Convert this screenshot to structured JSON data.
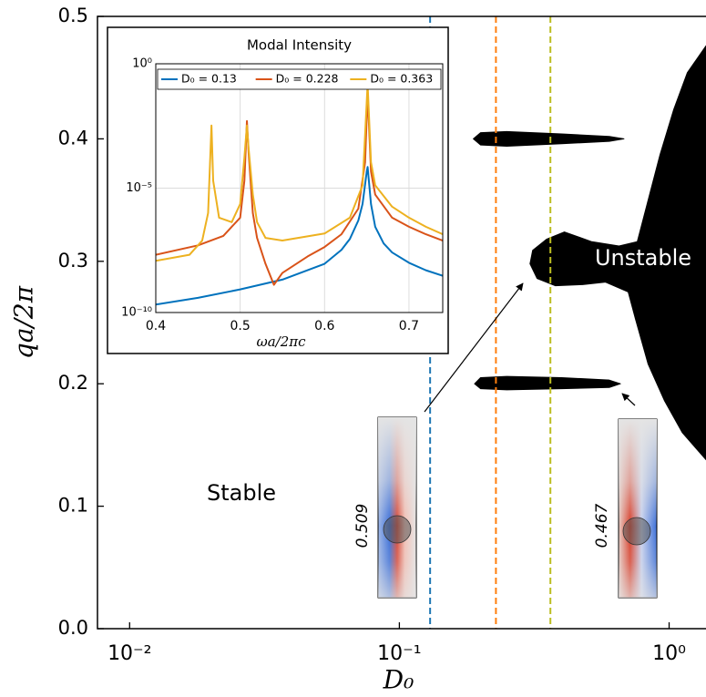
{
  "chart_data": [
    {
      "type": "region",
      "xlabel": "D₀",
      "ylabel": "qa/2π",
      "xscale": "log",
      "xlim": [
        0.0076,
        1.37
      ],
      "ylim": [
        0,
        0.5
      ],
      "xticks": [
        {
          "value": 0.01,
          "label": "10⁻²"
        },
        {
          "value": 0.1,
          "label": "10⁻¹"
        },
        {
          "value": 1,
          "label": "10⁰"
        }
      ],
      "yticks": [
        {
          "value": 0,
          "label": "0.0"
        },
        0.1,
        0.2,
        0.3,
        0.4,
        0.5
      ],
      "series": [
        {
          "color": "#000000",
          "x": [
            0.188,
            0.2,
            0.25,
            0.4,
            0.6,
            0.68,
            0.6,
            0.4,
            0.25,
            0.2
          ],
          "values": [
            0.4,
            0.405,
            0.406,
            0.404,
            0.402,
            0.4,
            0.398,
            0.396,
            0.394,
            0.395
          ]
        },
        {
          "color": "#000000",
          "x": [
            0.19,
            0.2,
            0.25,
            0.4,
            0.6,
            0.66,
            0.6,
            0.4,
            0.25,
            0.2
          ],
          "values": [
            0.2,
            0.205,
            0.206,
            0.205,
            0.203,
            0.2,
            0.197,
            0.196,
            0.195,
            0.196
          ]
        },
        {
          "color": "#000000",
          "x": [
            1.37,
            1.168,
            1.04,
            0.925,
            0.836,
            0.762,
            0.652,
            0.517,
            0.409,
            0.351,
            0.312,
            0.305,
            0.324,
            0.379,
            0.478,
            0.581,
            0.705,
            0.75,
            0.836,
            0.962,
            1.12,
            1.37
          ],
          "values": [
            0.476,
            0.454,
            0.424,
            0.387,
            0.35,
            0.316,
            0.3125,
            0.316,
            0.324,
            0.318,
            0.309,
            0.298,
            0.286,
            0.28,
            0.281,
            0.283,
            0.275,
            0.253,
            0.216,
            0.186,
            0.16,
            0.138
          ]
        }
      ],
      "vlines": [
        {
          "x": 0.13,
          "color": "#1f77b4"
        },
        {
          "x": 0.228,
          "color": "#ff7f0e"
        },
        {
          "x": 0.363,
          "color": "#bcbd22"
        }
      ],
      "annotations": [
        "Stable",
        "Unstable"
      ],
      "profile_labels": [
        "0.509",
        "0.467"
      ]
    },
    {
      "type": "line",
      "title": "Modal Intensity",
      "xlabel": "ωa/2πc",
      "yscale": "log",
      "grid": true,
      "legend": "top",
      "xlim": [
        0.4,
        0.74
      ],
      "ylim": [
        1e-10,
        1
      ],
      "xticks": [
        0.4,
        0.5,
        0.6,
        0.7
      ],
      "yticks": [
        {
          "value": 1,
          "label": "10⁰"
        },
        {
          "value": 1e-05,
          "label": "10⁻⁵"
        },
        {
          "value": 1e-10,
          "label": "10⁻¹⁰"
        }
      ],
      "series": [
        {
          "name": "D₀ = 0.13",
          "color": "#0072BD",
          "x": [
            0.4,
            0.45,
            0.5,
            0.55,
            0.6,
            0.62,
            0.63,
            0.64,
            0.645,
            0.65,
            0.651,
            0.655,
            0.66,
            0.67,
            0.68,
            0.7,
            0.72,
            0.74
          ],
          "values": [
            2.1e-10,
            3.9e-10,
            8.5e-10,
            2.1e-09,
            9.1e-09,
            3.3e-08,
            9.1e-08,
            5e-07,
            2.3e-06,
            4.7e-05,
            7.1e-05,
            2.3e-06,
            2.8e-07,
            6e-08,
            2.6e-08,
            1e-08,
            5e-09,
            3e-09
          ]
        },
        {
          "name": "D₀ = 0.228",
          "color": "#D95319",
          "x": [
            0.4,
            0.45,
            0.48,
            0.5,
            0.505,
            0.508,
            0.51,
            0.515,
            0.52,
            0.53,
            0.54,
            0.55,
            0.58,
            0.6,
            0.62,
            0.64,
            0.648,
            0.651,
            0.655,
            0.66,
            0.68,
            0.7,
            0.72,
            0.74
          ],
          "values": [
            2.1e-08,
            5e-08,
            1.2e-07,
            6.5e-07,
            2e-05,
            0.005,
            0.00026,
            1e-06,
            1e-07,
            9.1e-09,
            1.3e-09,
            3.9e-09,
            1.8e-08,
            4.3e-08,
            1.4e-07,
            1.5e-06,
            0.00011,
            0.065,
            4.7e-05,
            5.5e-06,
            6.5e-07,
            2.8e-07,
            1.4e-07,
            7.8e-08
          ]
        },
        {
          "name": "D₀ = 0.363",
          "color": "#EDB120",
          "x": [
            0.4,
            0.44,
            0.455,
            0.462,
            0.466,
            0.468,
            0.475,
            0.49,
            0.5,
            0.505,
            0.508,
            0.51,
            0.515,
            0.52,
            0.53,
            0.55,
            0.6,
            0.63,
            0.645,
            0.651,
            0.655,
            0.66,
            0.68,
            0.7,
            0.72,
            0.74
          ],
          "values": [
            1.2e-08,
            2.1e-08,
            7.8e-08,
            1e-06,
            0.0033,
            2e-05,
            6.5e-07,
            4.3e-07,
            2.3e-06,
            0.00017,
            0.0033,
            0.00039,
            5.5e-06,
            4.3e-07,
            1e-07,
            7.8e-08,
            1.5e-07,
            6.5e-07,
            1.3e-05,
            0.15,
            0.00011,
            1.3e-05,
            1.8e-06,
            6.5e-07,
            2.8e-07,
            1.4e-07
          ]
        }
      ]
    }
  ]
}
